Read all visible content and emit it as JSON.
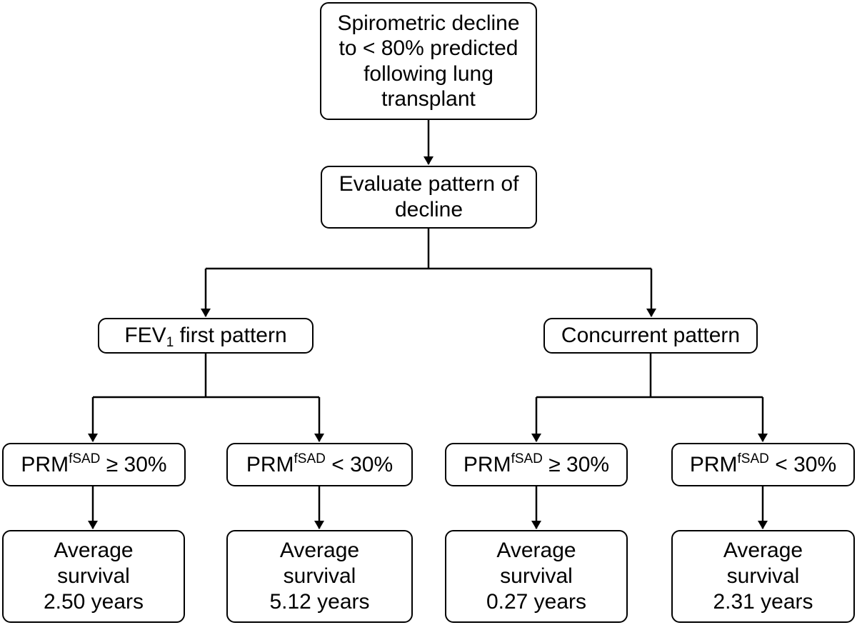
{
  "nodes": {
    "root": {
      "lines": [
        "Spirometric decline",
        "to < 80% predicted",
        "following lung",
        "transplant"
      ]
    },
    "evaluate": {
      "lines": [
        "Evaluate pattern of",
        "decline"
      ]
    },
    "fev1_first": {
      "label_main": "FEV",
      "label_sub": "1",
      "label_rest": " first pattern"
    },
    "concurrent": {
      "label": "Concurrent pattern"
    },
    "prm": [
      {
        "base": "PRM",
        "sup": "fSAD",
        "condition": " ≥ 30%"
      },
      {
        "base": "PRM",
        "sup": "fSAD",
        "condition": " < 30%"
      },
      {
        "base": "PRM",
        "sup": "fSAD",
        "condition": " ≥ 30%"
      },
      {
        "base": "PRM",
        "sup": "fSAD",
        "condition": " < 30%"
      }
    ],
    "survival": [
      {
        "line1": "Average",
        "line2": "survival",
        "line3": "2.50 years"
      },
      {
        "line1": "Average",
        "line2": "survival",
        "line3": "5.12 years"
      },
      {
        "line1": "Average",
        "line2": "survival",
        "line3": "0.27 years"
      },
      {
        "line1": "Average",
        "line2": "survival",
        "line3": "2.31 years"
      }
    ]
  },
  "colors": {
    "stroke": "#000000",
    "background": "#ffffff"
  }
}
